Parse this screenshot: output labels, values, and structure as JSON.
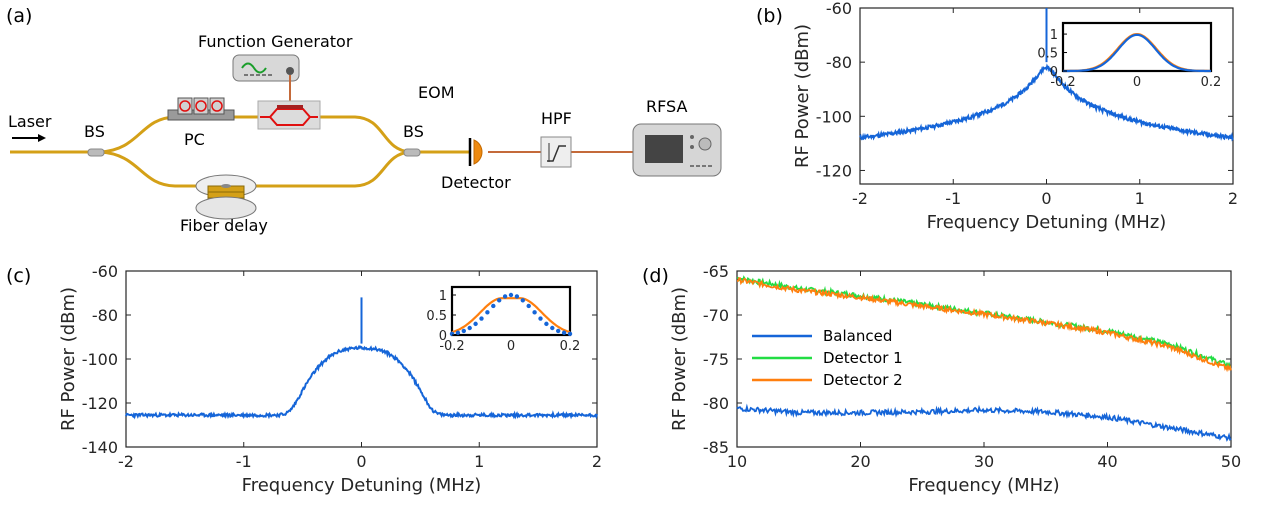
{
  "panel_labels": {
    "a": "(a)",
    "b": "(b)",
    "c": "(c)",
    "d": "(d)"
  },
  "schematic": {
    "laser": "Laser",
    "bs_in": "BS",
    "bs_out": "BS",
    "pc": "PC",
    "function_generator": "Function Generator",
    "eom": "EOM",
    "fiber_delay": "Fiber delay",
    "detector": "Detector",
    "hpf": "HPF",
    "rfsa": "RFSA"
  },
  "colors": {
    "blue": "#1565d8",
    "orange": "#ff7f0e",
    "green": "#22dd44",
    "fiber": "#d4a017",
    "rf_line": "#c46a3a",
    "eom_red": "#e01010"
  },
  "chart_data": [
    {
      "id": "b",
      "type": "line",
      "xlabel": "Frequency Detuning (MHz)",
      "ylabel": "RF Power (dBm)",
      "xlim": [
        -2,
        2
      ],
      "ylim": [
        -125,
        -60
      ],
      "xticks": [
        -2,
        -1,
        0,
        1,
        2
      ],
      "yticks": [
        -120,
        -100,
        -80,
        -60
      ],
      "xtick_labels": [
        "-2",
        "-1",
        "0",
        "1",
        "2"
      ],
      "ytick_labels": [
        "-120",
        "-100",
        "-80",
        "-60"
      ],
      "grid": false,
      "series": [
        {
          "color": "blue",
          "shape": "lorentzian",
          "floor": -124.5,
          "peak": -82,
          "width": 0.1,
          "spike_to": -60
        }
      ],
      "inset": {
        "xlim": [
          -0.2,
          0.2
        ],
        "ylim": [
          0,
          1.3
        ],
        "xticks": [
          -0.2,
          0,
          0.2
        ],
        "yticks": [
          0,
          0.5,
          1
        ],
        "xtick_labels": [
          "-0.2",
          "0",
          "0.2"
        ],
        "ytick_labels": [
          "0",
          "0.5",
          "1"
        ],
        "series": [
          {
            "color": "orange",
            "kind": "line",
            "center": 0,
            "amp": 1.0,
            "sigma": 0.052
          },
          {
            "color": "blue",
            "kind": "line",
            "center": 0,
            "amp": 0.98,
            "sigma": 0.05
          }
        ]
      }
    },
    {
      "id": "c",
      "type": "line",
      "xlabel": "Frequency Detuning (MHz)",
      "ylabel": "RF Power (dBm)",
      "xlim": [
        -2,
        2
      ],
      "ylim": [
        -140,
        -60
      ],
      "xticks": [
        -2,
        -1,
        0,
        1,
        2
      ],
      "yticks": [
        -140,
        -120,
        -100,
        -80,
        -60
      ],
      "xtick_labels": [
        "-2",
        "-1",
        "0",
        "1",
        "2"
      ],
      "ytick_labels": [
        "-140",
        "-120",
        "-100",
        "-80",
        "-60"
      ],
      "grid": false,
      "series": [
        {
          "color": "blue",
          "shape": "flat-top",
          "floor": -125.5,
          "peak": -95,
          "width": 0.28,
          "spike_to": -72
        }
      ],
      "inset": {
        "xlim": [
          -0.2,
          0.2
        ],
        "ylim": [
          0,
          1.2
        ],
        "xticks": [
          -0.2,
          0,
          0.2
        ],
        "yticks": [
          0,
          0.5,
          1
        ],
        "xtick_labels": [
          "-0.2",
          "0",
          "0.2"
        ],
        "ytick_labels": [
          "0",
          "0.5",
          "1"
        ],
        "series": [
          {
            "color": "orange",
            "kind": "line",
            "center": 0,
            "amp": 0.92,
            "sigma": 0.075,
            "flat": 0.03
          },
          {
            "color": "blue",
            "kind": "dots",
            "center": 0,
            "amp": 1.0,
            "sigma": 0.075
          }
        ]
      }
    },
    {
      "id": "d",
      "type": "line",
      "xlabel": "Frequency (MHz)",
      "ylabel": "RF Power (dBm)",
      "xlim": [
        10,
        50
      ],
      "ylim": [
        -85,
        -65
      ],
      "xticks": [
        10,
        20,
        30,
        40,
        50
      ],
      "yticks": [
        -85,
        -80,
        -75,
        -70,
        -65
      ],
      "xtick_labels": [
        "10",
        "20",
        "30",
        "40",
        "50"
      ],
      "ytick_labels": [
        "-85",
        "-80",
        "-75",
        "-70",
        "-65"
      ],
      "grid": false,
      "legend": "upper-left",
      "series": [
        {
          "name": "Balanced",
          "color": "blue",
          "x": [
            10,
            15,
            20,
            25,
            30,
            35,
            40,
            45,
            50
          ],
          "y": [
            -80.6,
            -81.1,
            -81.1,
            -81.0,
            -80.8,
            -81.0,
            -81.6,
            -82.8,
            -84.0
          ]
        },
        {
          "name": "Detector 1",
          "color": "green",
          "x": [
            10,
            15,
            20,
            25,
            30,
            35,
            40,
            45,
            50
          ],
          "y": [
            -65.8,
            -67.0,
            -67.8,
            -68.8,
            -69.8,
            -70.8,
            -71.8,
            -73.3,
            -75.8
          ]
        },
        {
          "name": "Detector 2",
          "color": "orange",
          "x": [
            10,
            15,
            20,
            25,
            30,
            35,
            40,
            45,
            50
          ],
          "y": [
            -66.0,
            -67.2,
            -68.0,
            -69.0,
            -69.9,
            -70.9,
            -72.0,
            -73.6,
            -76.2
          ]
        }
      ]
    }
  ]
}
